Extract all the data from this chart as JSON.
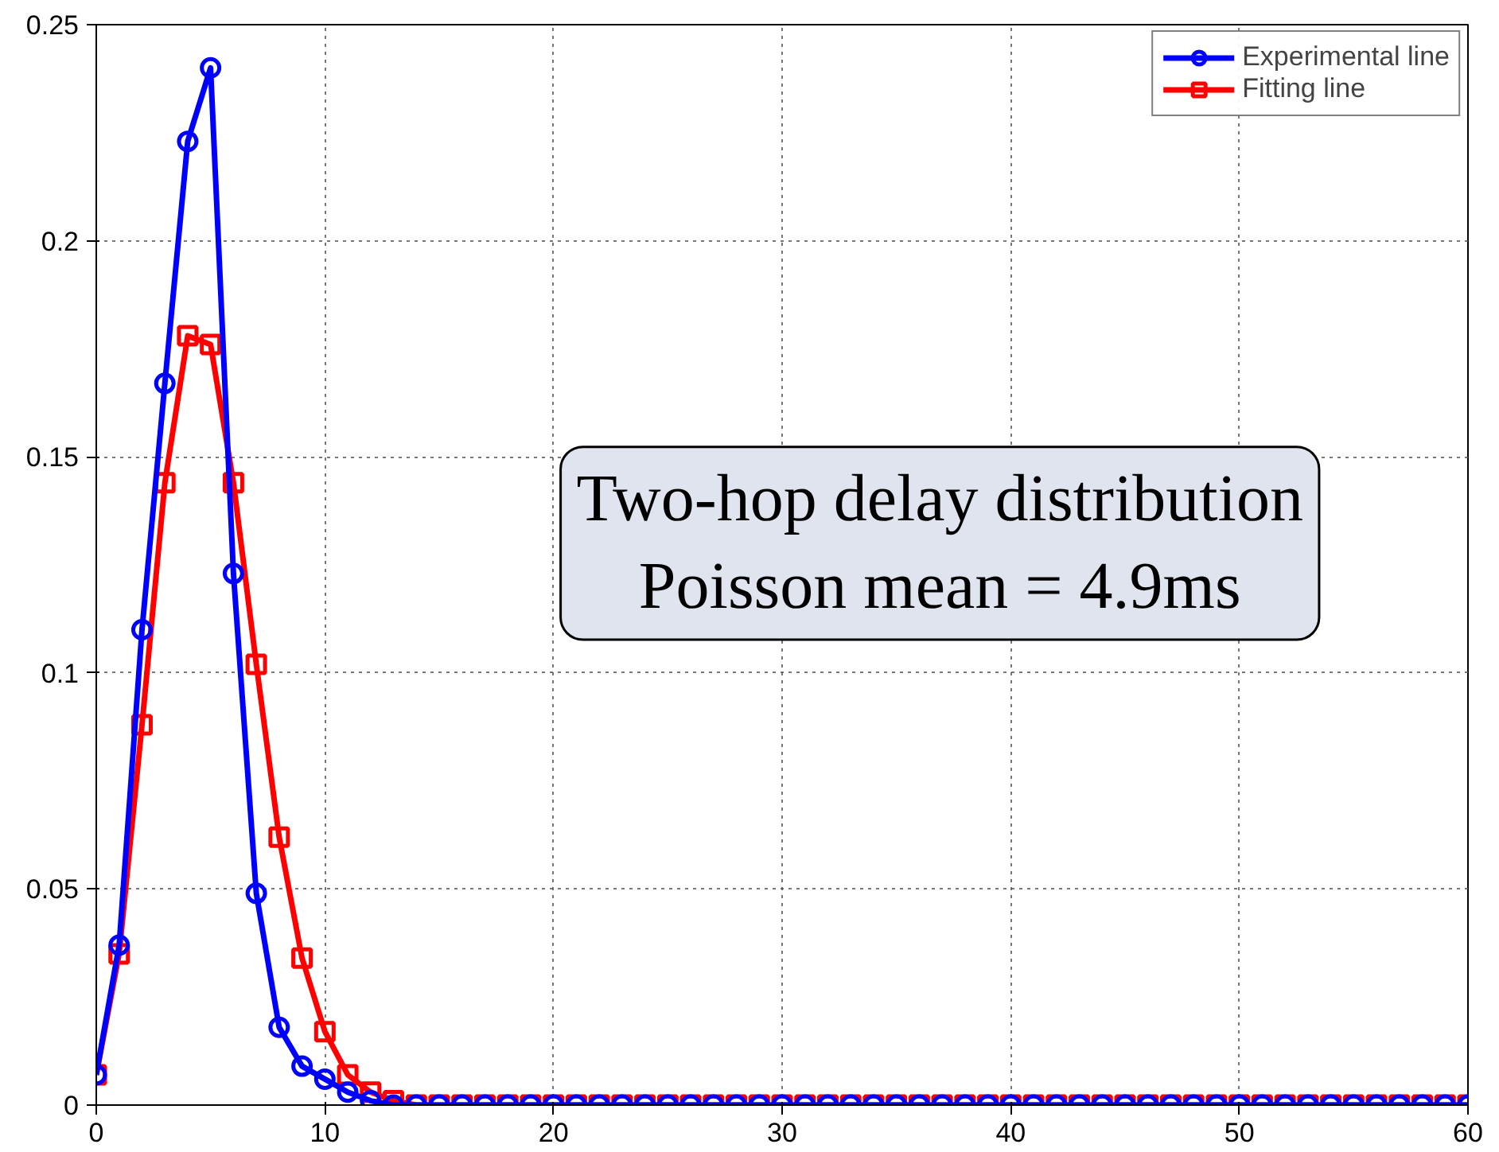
{
  "chart_data": {
    "type": "line",
    "x": [
      0,
      1,
      2,
      3,
      4,
      5,
      6,
      7,
      8,
      9,
      10,
      11,
      12,
      13,
      14,
      15,
      16,
      17,
      18,
      19,
      20,
      21,
      22,
      23,
      24,
      25,
      26,
      27,
      28,
      29,
      30,
      31,
      32,
      33,
      34,
      35,
      36,
      37,
      38,
      39,
      40,
      41,
      42,
      43,
      44,
      45,
      46,
      47,
      48,
      49,
      50,
      51,
      52,
      53,
      54,
      55,
      56,
      57,
      58,
      59,
      60
    ],
    "series": [
      {
        "name": "Experimental line",
        "color": "#0000ff",
        "marker": "circle",
        "values": [
          0.007,
          0.037,
          0.11,
          0.167,
          0.223,
          0.24,
          0.123,
          0.049,
          0.018,
          0.009,
          0.006,
          0.003,
          0.001,
          0,
          0,
          0,
          0,
          0,
          0,
          0,
          0,
          0,
          0,
          0,
          0,
          0,
          0,
          0,
          0,
          0,
          0,
          0,
          0,
          0,
          0,
          0,
          0,
          0,
          0,
          0,
          0,
          0,
          0,
          0,
          0,
          0,
          0,
          0,
          0,
          0,
          0,
          0,
          0,
          0,
          0,
          0,
          0,
          0,
          0,
          0,
          0
        ]
      },
      {
        "name": "Fitting line",
        "color": "#ff0000",
        "marker": "square",
        "values": [
          0.007,
          0.035,
          0.088,
          0.144,
          0.178,
          0.176,
          0.144,
          0.102,
          0.062,
          0.034,
          0.017,
          0.007,
          0.003,
          0.001,
          0,
          0,
          0,
          0,
          0,
          0,
          0,
          0,
          0,
          0,
          0,
          0,
          0,
          0,
          0,
          0,
          0,
          0,
          0,
          0,
          0,
          0,
          0,
          0,
          0,
          0,
          0,
          0,
          0,
          0,
          0,
          0,
          0,
          0,
          0,
          0,
          0,
          0,
          0,
          0,
          0,
          0,
          0,
          0,
          0,
          0,
          0
        ]
      }
    ],
    "xlim": [
      0,
      60
    ],
    "xticks": [
      0,
      10,
      20,
      30,
      40,
      50,
      60
    ],
    "ylim": [
      0,
      0.25
    ],
    "yticks": [
      0,
      0.05,
      0.1,
      0.15,
      0.2,
      0.25
    ],
    "annotations": [
      "Two-hop delay distribution",
      "Poisson mean = 4.9ms"
    ],
    "grid": true,
    "legend": "top right",
    "line_style": "solid"
  }
}
